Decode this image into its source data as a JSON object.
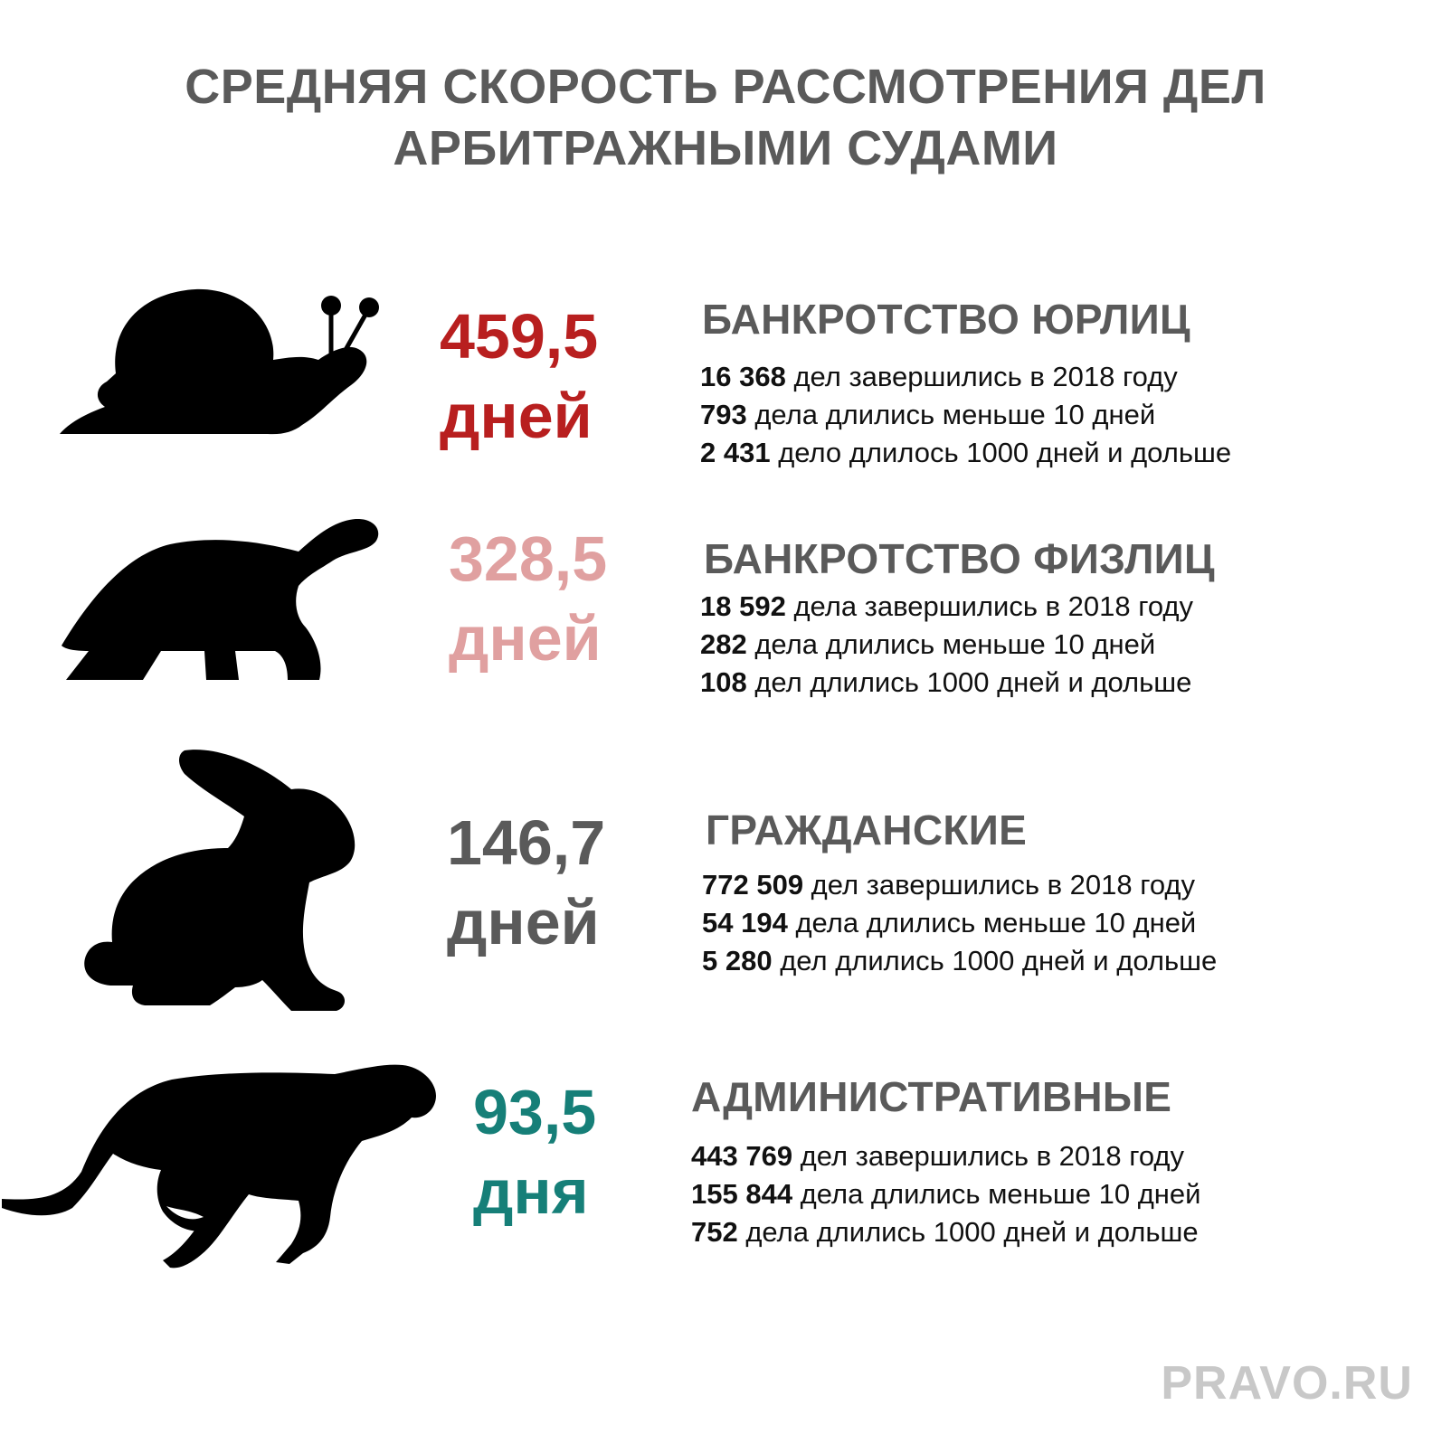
{
  "title": {
    "line1": "СРЕДНЯЯ СКОРОСТЬ РАССМОТРЕНИЯ ДЕЛ",
    "line2": "АРБИТРАЖНЫМИ СУДАМИ"
  },
  "rows": [
    {
      "animal_icon": "snail-icon",
      "value": "459,5",
      "unit": "дней",
      "color": "#b81f1f",
      "category": "БАНКРОТСТВО ЮРЛИЦ",
      "stats": [
        {
          "num": "16 368",
          "text": " дел завершились в 2018 году"
        },
        {
          "num": "793",
          "text": " дела длились меньше 10 дней"
        },
        {
          "num": "2 431",
          "text": " дело длилось 1000 дней и дольше"
        }
      ]
    },
    {
      "animal_icon": "turtle-icon",
      "value": "328,5",
      "unit": "дней",
      "color": "#e0a0a0",
      "category": "БАНКРОТСТВО ФИЗЛИЦ",
      "stats": [
        {
          "num": "18 592",
          "text": " дела завершились в 2018 году"
        },
        {
          "num": "282",
          "text": " дела длились меньше 10 дней"
        },
        {
          "num": "108",
          "text": " дел длились 1000 дней и дольше"
        }
      ]
    },
    {
      "animal_icon": "rabbit-icon",
      "value": "146,7",
      "unit": "дней",
      "color": "#5a5a5a",
      "category": "ГРАЖДАНСКИЕ",
      "stats": [
        {
          "num": "772 509",
          "text": " дел завершились в 2018 году"
        },
        {
          "num": "54 194",
          "text": " дела длились меньше 10 дней"
        },
        {
          "num": "5 280",
          "text": " дел длились 1000 дней и дольше"
        }
      ]
    },
    {
      "animal_icon": "cheetah-icon",
      "value": "93,5",
      "unit": "дня",
      "color": "#167f78",
      "category": "АДМИНИСТРАТИВНЫЕ",
      "stats": [
        {
          "num": "443 769",
          "text": " дел завершились в 2018 году"
        },
        {
          "num": "155 844",
          "text": " дела длились меньше 10 дней"
        },
        {
          "num": "752",
          "text": " дела длились 1000 дней и дольше"
        }
      ]
    }
  ],
  "brand": "PRAVO.RU"
}
